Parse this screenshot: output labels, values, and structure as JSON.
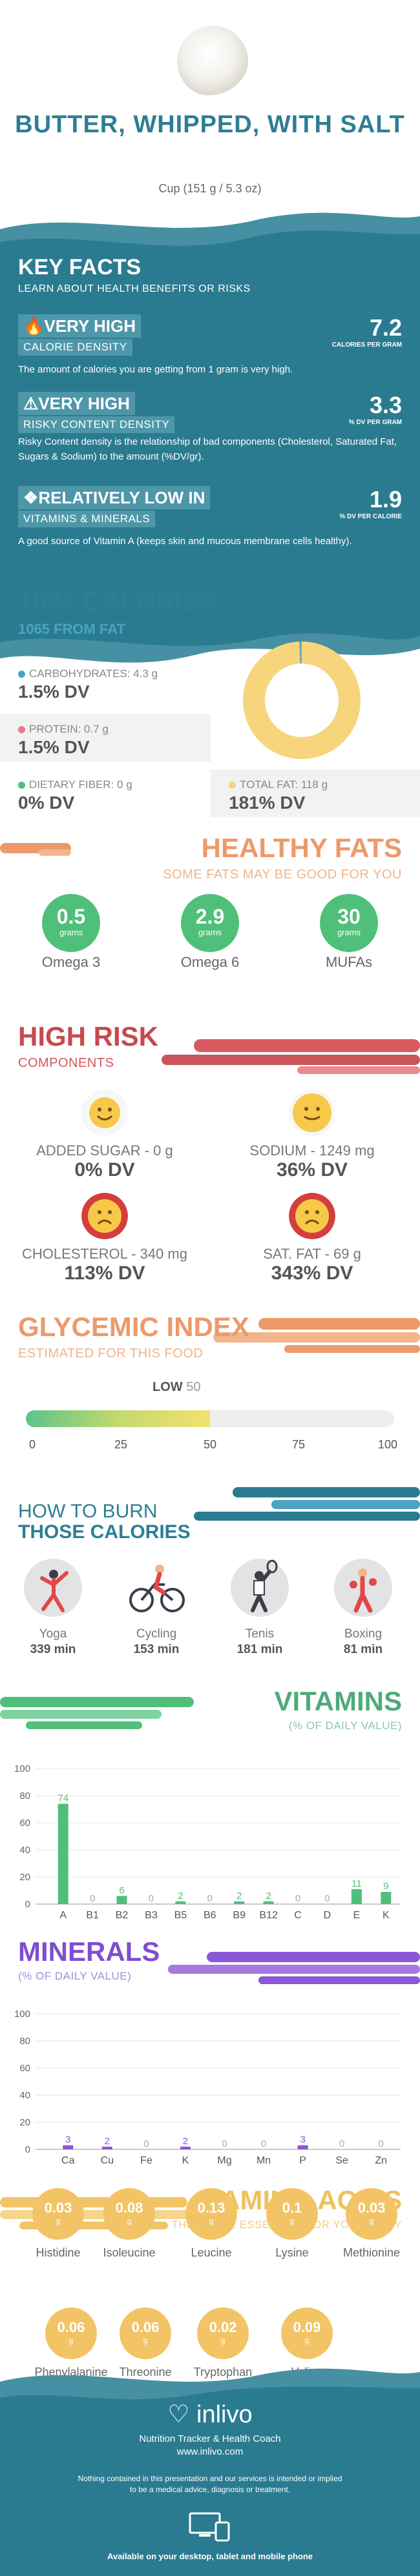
{
  "header": {
    "title": "BUTTER, WHIPPED, WITH SALT",
    "serving": "Cup (151 g / 5.3 oz)"
  },
  "key_facts": {
    "title": "KEY FACTS",
    "subtitle": "LEARN ABOUT HEALTH BENEFITS OR RISKS",
    "facts": [
      {
        "line1": "VERY HIGH",
        "line2": "CALORIE DENSITY",
        "value": "7.2",
        "unit": "CALORIES PER GRAM",
        "desc": "The amount of calories you are getting from 1 gram is very high.",
        "icon": "fire-icon"
      },
      {
        "line1": "VERY HIGH",
        "line2": "RISKY CONTENT DENSITY",
        "value": "3.3",
        "unit": "% DV PER GRAM",
        "desc": "Risky Content density is the relationship of bad components (Cholesterol, Saturated Fat, Sugars & Sodium) to the amount (%DV/gr).",
        "icon": "warning-icon"
      },
      {
        "line1": "RELATIVELY LOW IN",
        "line2": "VITAMINS & MINERALS",
        "value": "1.9",
        "unit": "% DV PER CALORIE",
        "desc": "A good source of Vitamin A (keeps skin and mucous membrane cells healthy).",
        "icon": "leaf-icon"
      }
    ]
  },
  "calories": {
    "title": "1084 CALORIES",
    "subtitle": "1065 FROM FAT",
    "nutrients": [
      {
        "label": "CARBOHYDRATES: 4.3 g",
        "dv": "1.5% DV",
        "color": "#4aa4c2",
        "pct": 0.4
      },
      {
        "label": "PROTEIN: 0.7 g",
        "dv": "1.5% DV",
        "color": "#e57f86",
        "pct": 0.3
      },
      {
        "label": "DIETARY FIBER: 0 g",
        "dv": "0% DV",
        "color": "#4fbf7a",
        "pct": 0
      },
      {
        "label": "TOTAL FAT: 118 g",
        "dv": "181% DV",
        "color": "#f7d57d",
        "pct": 99.3
      }
    ]
  },
  "healthy_fats": {
    "title": "HEALTHY FATS",
    "subtitle": "SOME FATS MAY BE GOOD FOR YOU",
    "items": [
      {
        "value": "0.5",
        "unit": "grams",
        "label": "Omega 3"
      },
      {
        "value": "2.9",
        "unit": "grams",
        "label": "Omega 6"
      },
      {
        "value": "30",
        "unit": "grams",
        "label": "MUFAs"
      }
    ]
  },
  "high_risk": {
    "title": "HIGH RISK",
    "subtitle": "COMPONENTS",
    "items": [
      {
        "label": "ADDED SUGAR - 0 g",
        "dv": "0% DV",
        "face": "happy"
      },
      {
        "label": "SODIUM - 1249 mg",
        "dv": "36% DV",
        "face": "neutral"
      },
      {
        "label": "CHOLESTEROL - 340 mg",
        "dv": "113% DV",
        "face": "sad"
      },
      {
        "label": "SAT. FAT - 69 g",
        "dv": "343% DV",
        "face": "sad"
      }
    ]
  },
  "glycemic": {
    "title": "GLYCEMIC INDEX",
    "subtitle": "ESTIMATED FOR THIS FOOD",
    "level": "LOW",
    "value": "50",
    "ticks": [
      "0",
      "25",
      "50",
      "75",
      "100"
    ]
  },
  "burn": {
    "title1": "HOW TO BURN",
    "title2": "THOSE CALORIES",
    "items": [
      {
        "label": "Yoga",
        "minutes": "339 min"
      },
      {
        "label": "Cycling",
        "minutes": "153 min"
      },
      {
        "label": "Tenis",
        "minutes": "181 min"
      },
      {
        "label": "Boxing",
        "minutes": "81 min"
      }
    ]
  },
  "vitamins": {
    "title": "VITAMINS",
    "subtitle": "(% OF DAILY VALUE)"
  },
  "minerals": {
    "title": "MINERALS",
    "subtitle": "(% OF DAILY VALUE)"
  },
  "chart_data": [
    {
      "type": "bar",
      "categories": [
        "A",
        "B1",
        "B2",
        "B3",
        "B5",
        "B6",
        "B9",
        "B12",
        "C",
        "D",
        "E",
        "K"
      ],
      "values": [
        74,
        0,
        6,
        0,
        2,
        0,
        2,
        2,
        0,
        0,
        11,
        9
      ],
      "ylim": [
        0,
        100
      ],
      "yticks": [
        "0",
        "20",
        "40",
        "60",
        "80",
        "100"
      ],
      "color": "#4fbf7a"
    },
    {
      "type": "bar",
      "categories": [
        "Ca",
        "Cu",
        "Fe",
        "K",
        "Mg",
        "Mn",
        "P",
        "Se",
        "Zn"
      ],
      "values": [
        3,
        2,
        0,
        2,
        0,
        0,
        3,
        0,
        0
      ],
      "ylim": [
        0,
        100
      ],
      "yticks": [
        "0",
        "20",
        "40",
        "60",
        "80",
        "100"
      ],
      "color": "#8a57d6"
    }
  ],
  "amino": {
    "title": "AMINO ACIDS",
    "subtitle": "THESE ARE ESSENTIAL FOR YOUR BODY",
    "unit": "g",
    "items": [
      {
        "value": "0.03",
        "label": "Histidine"
      },
      {
        "value": "0.08",
        "label": "Isoleucine"
      },
      {
        "value": "0.13",
        "label": "Leucine"
      },
      {
        "value": "0.1",
        "label": "Lysine"
      },
      {
        "value": "0.03",
        "label": "Methionine"
      },
      {
        "value": "0.06",
        "label": "Phenylalanine"
      },
      {
        "value": "0.06",
        "label": "Threonine"
      },
      {
        "value": "0.02",
        "label": "Tryptophan"
      },
      {
        "value": "0.09",
        "label": "Valine"
      }
    ]
  },
  "footer": {
    "brand": "inlivo",
    "tagline": "Nutrition Tracker & Health Coach",
    "site": "www.inlivo.com",
    "disclaimer": "Nothing contained in this presentation and our services is intended or implied to be a medical advice, diagnosis or treatment.",
    "available": "Available on your desktop, tablet and mobile phone"
  }
}
